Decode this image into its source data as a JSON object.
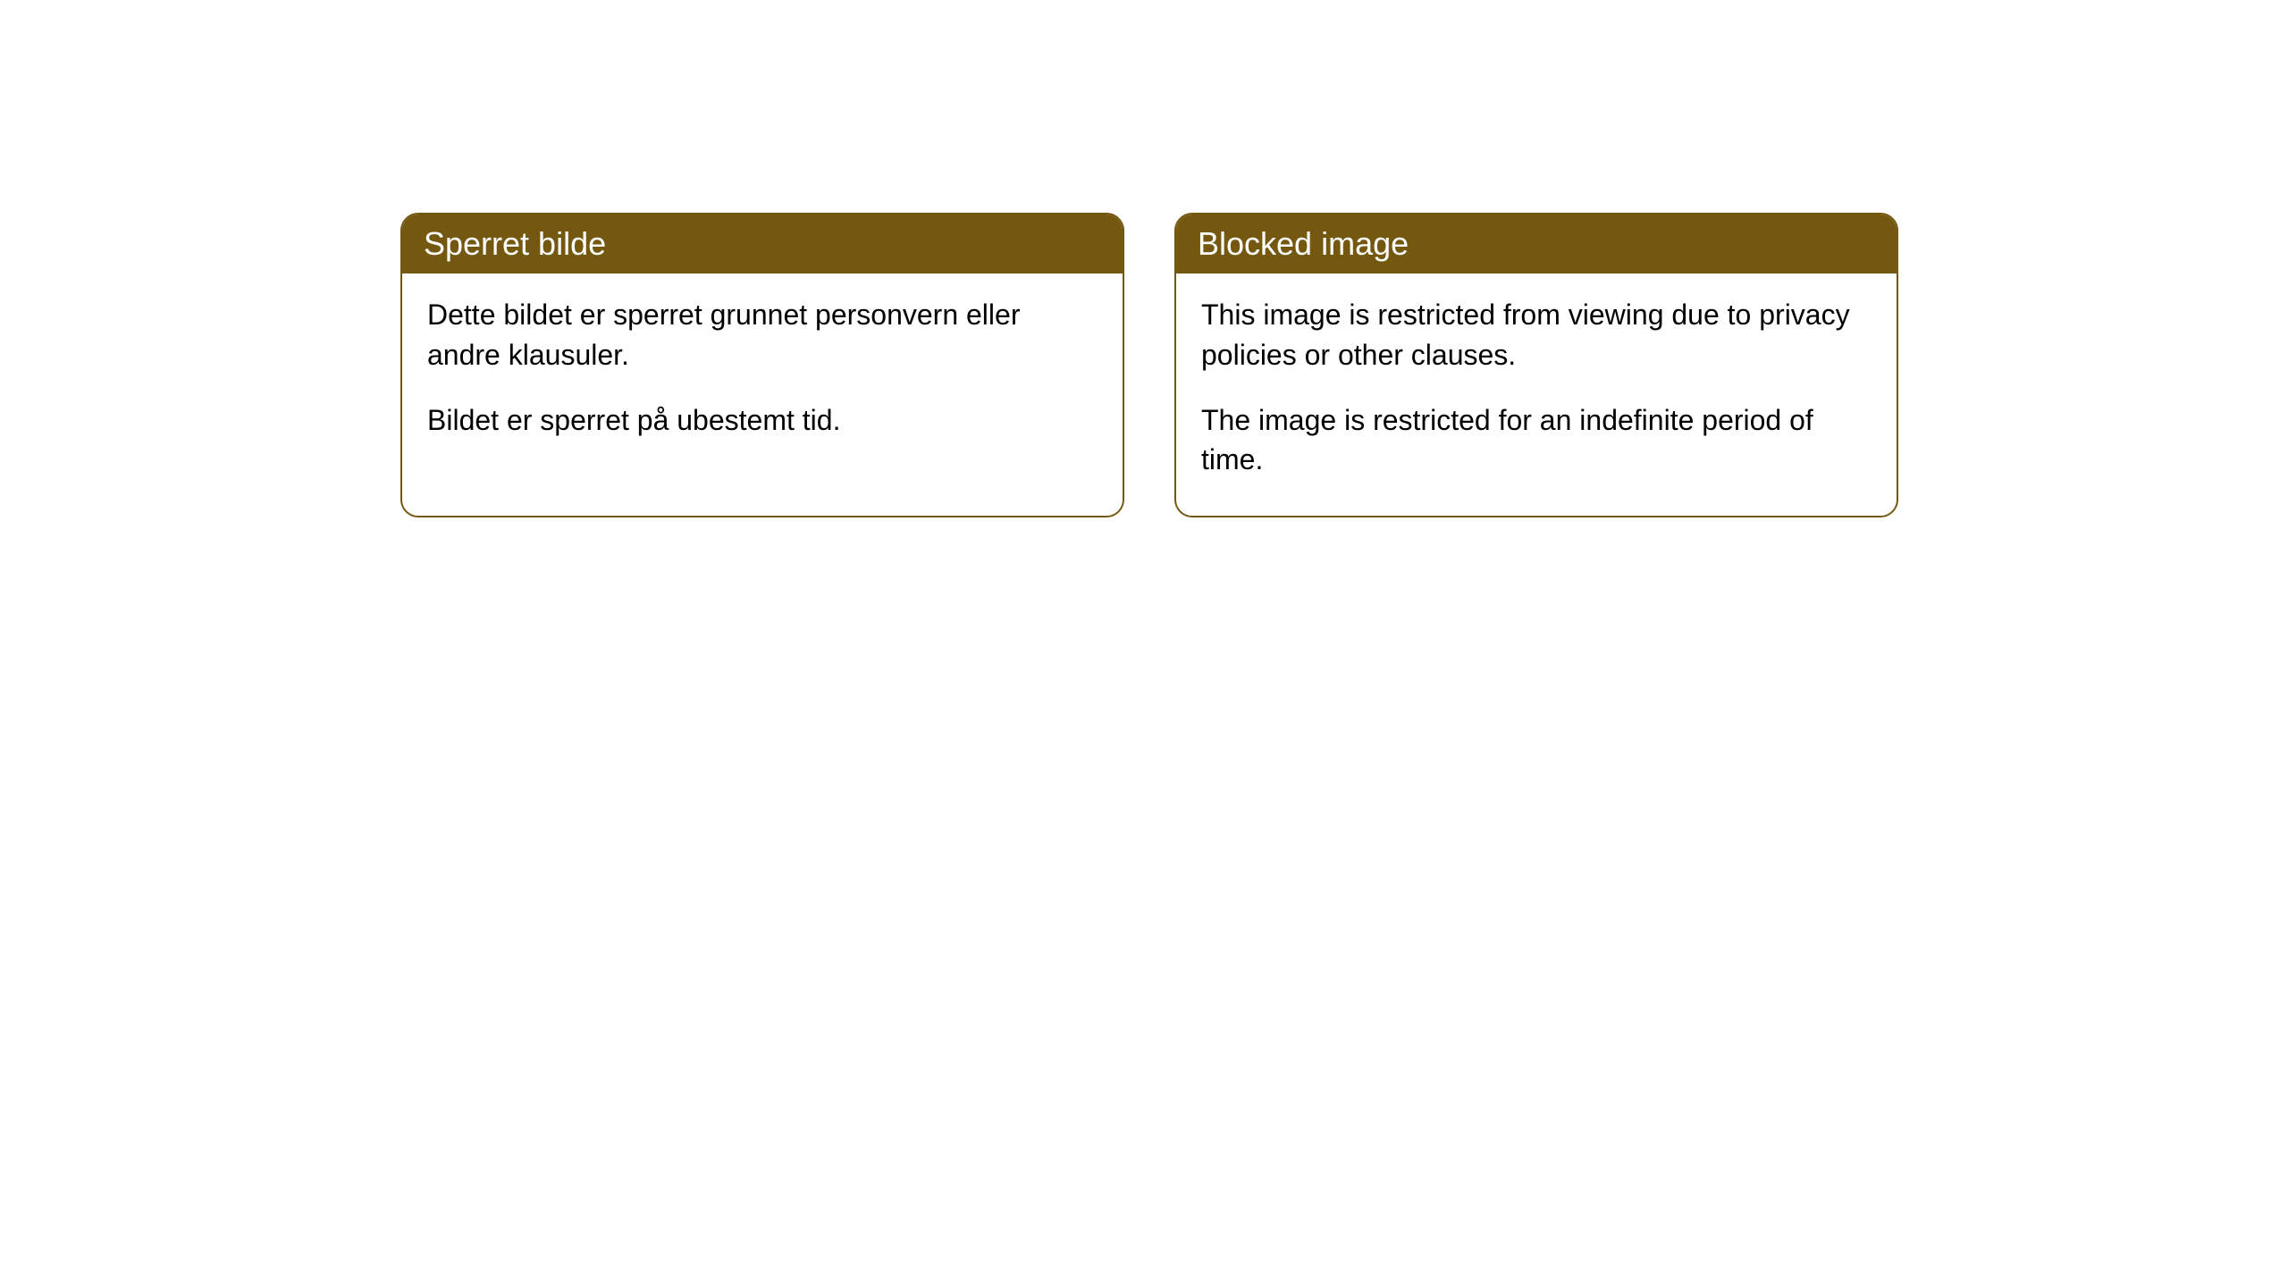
{
  "cards": [
    {
      "title": "Sperret bilde",
      "paragraph1": "Dette bildet er sperret grunnet personvern eller andre klausuler.",
      "paragraph2": "Bildet er sperret på ubestemt tid."
    },
    {
      "title": "Blocked image",
      "paragraph1": "This image is restricted from viewing due to privacy policies or other clauses.",
      "paragraph2": "The image is restricted for an indefinite period of time."
    }
  ],
  "styles": {
    "header_bg_color": "#745810",
    "header_text_color": "#ffffff",
    "border_color": "#745810",
    "body_bg_color": "#ffffff",
    "body_text_color": "#000000",
    "border_radius": 20,
    "header_fontsize": 36,
    "body_fontsize": 32
  }
}
